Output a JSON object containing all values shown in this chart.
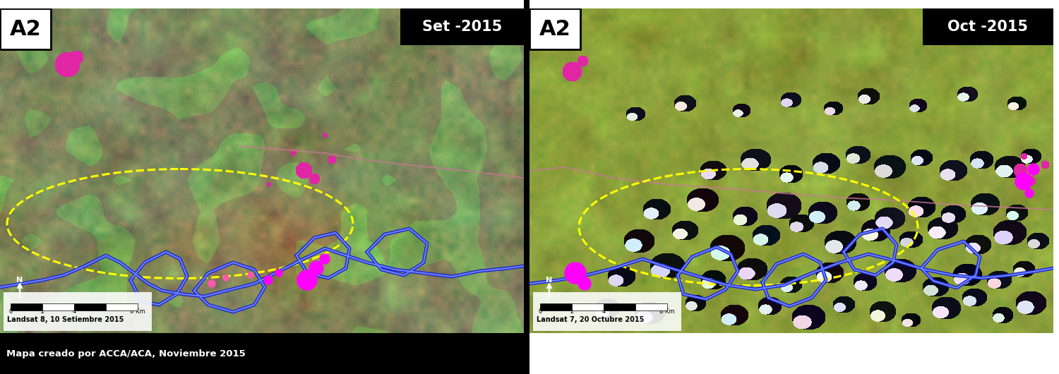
{
  "figure_width": 15.0,
  "figure_height": 5.3,
  "dpi": 100,
  "background_color": "#ffffff",
  "left_panel": {
    "label_topleft": "A2",
    "label_topright": "Set -2015",
    "caption": "Landsat 8, 10 Setiembre 2015",
    "credit": "Mapa creado por ACCA/ACA, Noviembre 2015"
  },
  "right_panel": {
    "label_topleft": "A2",
    "label_topright": "Oct -2015",
    "caption": "Landsat 7, 20 Octubre 2015"
  },
  "scalebar_ticks": [
    "0",
    "2",
    "4",
    "8 Km"
  ]
}
